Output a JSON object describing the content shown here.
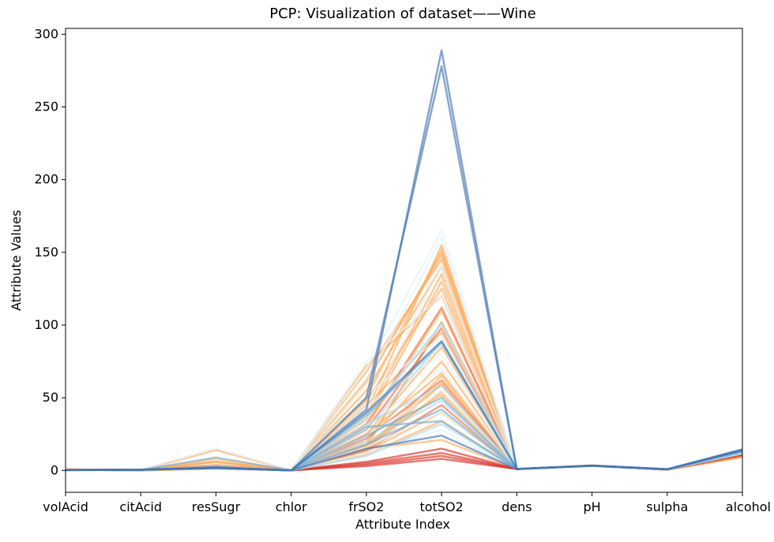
{
  "chart_data": {
    "type": "line",
    "title": "PCP: Visualization of dataset——Wine",
    "xlabel": "Attribute Index",
    "ylabel": "Attribute Values",
    "categories": [
      "volAcid",
      "citAcid",
      "resSugr",
      "chlor",
      "frSO2",
      "totSO2",
      "dens",
      "pH",
      "sulpha",
      "alcohol"
    ],
    "yticks": [
      0,
      50,
      100,
      150,
      200,
      250,
      300
    ],
    "ylim": [
      -15,
      304
    ],
    "grid": false,
    "legend": "none",
    "series": [
      {
        "color": "#fdae61",
        "values": [
          0.7,
          0.0,
          1.9,
          0.08,
          11,
          34,
          0.997,
          3.5,
          0.56,
          9.4
        ]
      },
      {
        "color": "#fdae61",
        "values": [
          0.88,
          0.0,
          2.6,
          0.1,
          25,
          67,
          0.997,
          3.2,
          0.68,
          9.8
        ]
      },
      {
        "color": "#fdae61",
        "values": [
          0.76,
          0.04,
          2.3,
          0.09,
          15,
          54,
          0.997,
          3.26,
          0.65,
          9.8
        ]
      },
      {
        "color": "#fdae61",
        "values": [
          0.28,
          0.56,
          1.9,
          0.075,
          17,
          60,
          0.998,
          3.16,
          0.58,
          9.8
        ]
      },
      {
        "color": "#fdae61",
        "values": [
          0.66,
          0.0,
          1.8,
          0.075,
          13,
          40,
          0.998,
          3.51,
          0.56,
          9.4
        ]
      },
      {
        "color": "#fdae61",
        "values": [
          0.6,
          0.06,
          1.6,
          0.069,
          15,
          59,
          0.996,
          3.3,
          0.46,
          9.4
        ]
      },
      {
        "color": "#fdae61",
        "values": [
          0.65,
          0.0,
          1.2,
          0.065,
          15,
          21,
          0.995,
          3.39,
          0.47,
          10.0
        ]
      },
      {
        "color": "#fdae61",
        "values": [
          0.5,
          0.36,
          6.1,
          0.071,
          17,
          102,
          0.998,
          3.35,
          0.8,
          10.5
        ]
      },
      {
        "color": "#fdae61",
        "values": [
          0.58,
          0.08,
          1.8,
          0.097,
          15,
          65,
          0.996,
          3.28,
          0.54,
          9.2
        ]
      },
      {
        "color": "#fdae61",
        "values": [
          0.5,
          0.36,
          6.1,
          0.071,
          17,
          102,
          0.998,
          3.35,
          0.8,
          10.5
        ]
      },
      {
        "color": "#fdae61",
        "values": [
          0.62,
          0.19,
          3.9,
          0.09,
          55,
          140,
          0.997,
          3.2,
          0.6,
          9.6
        ]
      },
      {
        "color": "#fdae61",
        "values": [
          0.55,
          0.2,
          2.4,
          0.085,
          60,
          150,
          0.997,
          3.3,
          0.62,
          9.8
        ]
      },
      {
        "color": "#fdae61",
        "values": [
          0.64,
          0.15,
          5.8,
          0.088,
          40,
          155,
          0.998,
          3.25,
          0.58,
          9.4
        ]
      },
      {
        "color": "#fdae61",
        "values": [
          0.7,
          0.1,
          2.6,
          0.08,
          68,
          145,
          0.997,
          3.3,
          0.55,
          9.5
        ]
      },
      {
        "color": "#fdae61",
        "values": [
          0.6,
          0.25,
          8.0,
          0.09,
          35,
          130,
          0.998,
          3.2,
          0.65,
          9.7
        ]
      },
      {
        "color": "#fdae61",
        "values": [
          0.56,
          0.3,
          2.2,
          0.079,
          48,
          125,
          0.997,
          3.3,
          0.6,
          9.6
        ]
      },
      {
        "color": "#fdae61",
        "values": [
          0.48,
          0.2,
          2.0,
          0.08,
          72,
          120,
          0.997,
          3.3,
          0.6,
          9.8
        ]
      },
      {
        "color": "#fdae61",
        "values": [
          0.63,
          0.12,
          3.0,
          0.085,
          30,
          110,
          0.997,
          3.25,
          0.6,
          9.5
        ]
      },
      {
        "color": "#fdae61",
        "values": [
          0.61,
          0.05,
          2.1,
          0.08,
          45,
          95,
          0.997,
          3.3,
          0.58,
          9.6
        ]
      },
      {
        "color": "#fdae61",
        "values": [
          0.52,
          0.22,
          2.5,
          0.078,
          25,
          85,
          0.997,
          3.3,
          0.62,
          10.0
        ]
      },
      {
        "color": "#fdae61",
        "values": [
          0.59,
          0.18,
          14.0,
          0.09,
          50,
          152,
          0.998,
          3.2,
          0.6,
          9.4
        ]
      },
      {
        "color": "#fdae61",
        "values": [
          0.57,
          0.1,
          2.3,
          0.085,
          20,
          75,
          0.997,
          3.3,
          0.6,
          9.8
        ]
      },
      {
        "color": "#fdae61",
        "values": [
          0.67,
          0.08,
          2.0,
          0.08,
          38,
          135,
          0.997,
          3.3,
          0.58,
          9.5
        ]
      },
      {
        "color": "#fdae61",
        "values": [
          0.45,
          0.25,
          2.4,
          0.08,
          62,
          148,
          0.997,
          3.25,
          0.6,
          9.7
        ]
      },
      {
        "color": "#fdae61",
        "values": [
          0.54,
          0.12,
          2.2,
          0.08,
          18,
          52,
          0.997,
          3.3,
          0.6,
          9.8
        ]
      },
      {
        "color": "#f46d43",
        "values": [
          0.4,
          0.3,
          2.5,
          0.08,
          32,
          112,
          0.997,
          3.3,
          0.65,
          10.2
        ]
      },
      {
        "color": "#f46d43",
        "values": [
          0.42,
          0.35,
          3.2,
          0.07,
          28,
          98,
          0.997,
          3.3,
          0.7,
          10.5
        ]
      },
      {
        "color": "#f46d43",
        "values": [
          0.38,
          0.4,
          2.0,
          0.075,
          22,
          62,
          0.996,
          3.3,
          0.7,
          10.6
        ]
      },
      {
        "color": "#f46d43",
        "values": [
          0.44,
          0.32,
          2.2,
          0.07,
          14,
          45,
          0.996,
          3.3,
          0.7,
          10.4
        ]
      },
      {
        "color": "#d73027",
        "values": [
          0.35,
          0.45,
          2.1,
          0.065,
          4,
          10,
          0.996,
          3.35,
          0.75,
          11.0
        ]
      },
      {
        "color": "#d73027",
        "values": [
          0.33,
          0.48,
          2.0,
          0.06,
          5,
          12,
          0.996,
          3.3,
          0.78,
          11.3
        ]
      },
      {
        "color": "#d73027",
        "values": [
          0.31,
          0.5,
          1.8,
          0.06,
          3,
          8,
          0.995,
          3.35,
          0.8,
          11.6
        ]
      },
      {
        "color": "#d73027",
        "values": [
          0.36,
          0.44,
          2.3,
          0.068,
          6,
          15,
          0.996,
          3.3,
          0.74,
          11.1
        ]
      },
      {
        "color": "#e0f3f8",
        "values": [
          0.32,
          0.38,
          2.4,
          0.06,
          60,
          160,
          0.995,
          3.3,
          0.75,
          12.0
        ]
      },
      {
        "color": "#e0f3f8",
        "values": [
          0.3,
          0.42,
          2.2,
          0.055,
          75,
          120,
          0.995,
          3.35,
          0.78,
          12.2
        ]
      },
      {
        "color": "#e0f3f8",
        "values": [
          0.28,
          0.45,
          2.0,
          0.05,
          70,
          165,
          0.995,
          3.3,
          0.8,
          12.5
        ]
      },
      {
        "color": "#e0f3f8",
        "values": [
          0.34,
          0.36,
          2.6,
          0.06,
          38,
          100,
          0.995,
          3.3,
          0.72,
          11.8
        ]
      },
      {
        "color": "#e0f3f8",
        "values": [
          0.29,
          0.4,
          2.3,
          0.058,
          52,
          92,
          0.995,
          3.3,
          0.76,
          12.1
        ]
      },
      {
        "color": "#e0f3f8",
        "values": [
          0.31,
          0.39,
          2.1,
          0.06,
          44,
          80,
          0.995,
          3.3,
          0.74,
          11.9
        ]
      },
      {
        "color": "#e0f3f8",
        "values": [
          0.27,
          0.44,
          1.9,
          0.05,
          24,
          55,
          0.995,
          3.35,
          0.8,
          12.6
        ]
      },
      {
        "color": "#e0f3f8",
        "values": [
          0.33,
          0.37,
          2.5,
          0.062,
          30,
          70,
          0.995,
          3.3,
          0.73,
          11.7
        ]
      },
      {
        "color": "#e0f3f8",
        "values": [
          0.3,
          0.41,
          2.4,
          0.057,
          16,
          40,
          0.995,
          3.3,
          0.77,
          12.3
        ]
      },
      {
        "color": "#e0f3f8",
        "values": [
          0.32,
          0.4,
          15.5,
          0.06,
          40,
          140,
          0.996,
          3.3,
          0.75,
          12.0
        ]
      },
      {
        "color": "#e0f3f8",
        "values": [
          0.28,
          0.43,
          2.2,
          0.055,
          12,
          28,
          0.995,
          3.35,
          0.79,
          12.4
        ]
      },
      {
        "color": "#abd9e9",
        "values": [
          0.3,
          0.4,
          2.5,
          0.06,
          28,
          88,
          0.995,
          3.3,
          0.78,
          12.0
        ]
      },
      {
        "color": "#abd9e9",
        "values": [
          0.29,
          0.42,
          2.0,
          0.055,
          32,
          58,
          0.995,
          3.35,
          0.8,
          12.5
        ]
      },
      {
        "color": "#abd9e9",
        "values": [
          0.31,
          0.38,
          2.2,
          0.06,
          20,
          48,
          0.995,
          3.3,
          0.76,
          12.2
        ]
      },
      {
        "color": "#abd9e9",
        "values": [
          0.27,
          0.45,
          1.9,
          0.05,
          10,
          32,
          0.995,
          3.35,
          0.82,
          12.8
        ]
      },
      {
        "color": "#abd9e9",
        "values": [
          0.33,
          0.37,
          2.6,
          0.062,
          36,
          101,
          0.995,
          3.3,
          0.74,
          11.9
        ]
      },
      {
        "color": "#74add1",
        "values": [
          0.28,
          0.45,
          2.3,
          0.055,
          38,
          88,
          0.995,
          3.3,
          0.8,
          13.0
        ]
      },
      {
        "color": "#74add1",
        "values": [
          0.26,
          0.47,
          2.0,
          0.05,
          24,
          50,
          0.995,
          3.35,
          0.82,
          13.3
        ]
      },
      {
        "color": "#74add1",
        "values": [
          0.3,
          0.42,
          9.0,
          0.06,
          18,
          42,
          0.996,
          3.3,
          0.78,
          12.8
        ]
      },
      {
        "color": "#74add1",
        "values": [
          0.27,
          0.44,
          2.2,
          0.055,
          30,
          34,
          0.995,
          3.35,
          0.8,
          13.1
        ]
      },
      {
        "color": "#4575b4",
        "values": [
          0.25,
          0.5,
          2.0,
          0.05,
          15,
          24,
          0.995,
          3.35,
          0.85,
          14.0
        ]
      },
      {
        "color": "#4575b4",
        "values": [
          0.24,
          0.48,
          2.2,
          0.048,
          40,
          89,
          0.995,
          3.3,
          0.84,
          14.3
        ]
      },
      {
        "color": "#4575b4",
        "values": [
          0.3,
          0.5,
          1.6,
          0.045,
          42,
          289,
          0.995,
          3.35,
          0.82,
          14.5
        ]
      },
      {
        "color": "#4575b4",
        "values": [
          0.32,
          0.48,
          1.8,
          0.05,
          50,
          278,
          0.995,
          3.3,
          0.8,
          14.0
        ]
      }
    ]
  }
}
